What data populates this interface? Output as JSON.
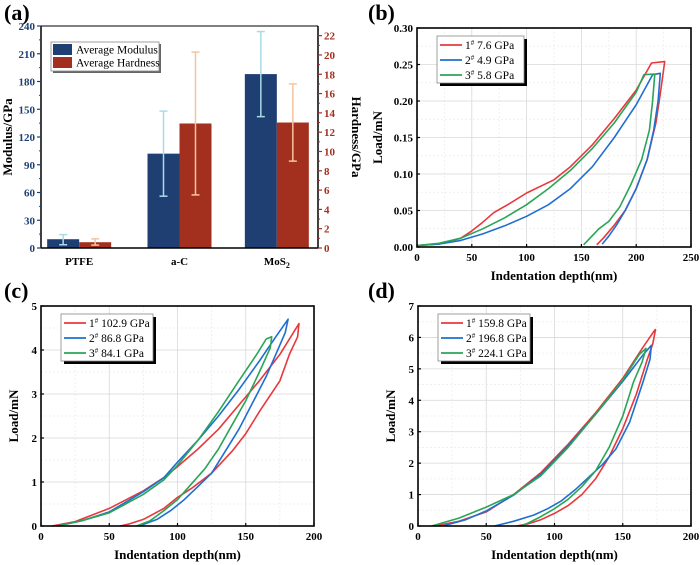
{
  "chart_data": [
    {
      "id": "a",
      "panel_label": "(a)",
      "type": "bar",
      "categories": [
        "PTFE",
        "a-C",
        "MoS2"
      ],
      "category_display": [
        [
          "PTFE",
          ""
        ],
        [
          "a-C",
          ""
        ],
        [
          "MoS",
          "2"
        ]
      ],
      "xlabel": "",
      "ylabel": "Modulus/GPa",
      "y2label": "Hardness/GPa",
      "ylim": [
        0,
        240
      ],
      "y2lim": [
        0,
        23
      ],
      "yticks": [
        0,
        30,
        60,
        90,
        120,
        150,
        180,
        210,
        240
      ],
      "y2ticks": [
        0,
        2,
        4,
        6,
        8,
        10,
        12,
        14,
        16,
        18,
        20,
        22
      ],
      "legend_position": "top-left",
      "series": [
        {
          "name": "Average Modulus",
          "axis": "left",
          "color": "#1f3f72",
          "err_color": "#a8dbe8",
          "values": [
            9.5,
            102,
            188
          ],
          "err_low": [
            3.5,
            56,
            142
          ],
          "err_high": [
            14.5,
            148,
            234
          ]
        },
        {
          "name": "Average Hardness",
          "axis": "right",
          "color": "#a3301f",
          "err_color": "#f6c49d",
          "values": [
            0.6,
            12.9,
            13.0
          ],
          "err_low": [
            0.3,
            5.5,
            9.0
          ],
          "err_high": [
            0.95,
            20.3,
            17.0
          ]
        }
      ],
      "colors": {
        "left_axis": "#1f3f72",
        "right_axis": "#a3301f"
      }
    },
    {
      "id": "b",
      "panel_label": "(b)",
      "type": "line",
      "xlabel": "Indentation depth(nm)",
      "ylabel": "Load/mN",
      "xlim": [
        0,
        250
      ],
      "ylim": [
        0,
        0.3
      ],
      "xticks": [
        0,
        50,
        100,
        150,
        200,
        250
      ],
      "yticks": [
        "0.00",
        "0.05",
        "0.10",
        "0.15",
        "0.20",
        "0.25",
        "0.30"
      ],
      "grid": true,
      "legend_position": "top-left",
      "series": [
        {
          "name": "1#",
          "label_num": "1",
          "value": "7.6 GPa",
          "color": "#e8383d",
          "x": [
            0,
            20,
            40,
            50,
            60,
            70,
            85,
            100,
            125,
            140,
            160,
            180,
            200,
            214,
            226,
            222,
            218,
            210,
            200,
            190,
            180,
            170,
            164
          ],
          "y": [
            0.002,
            0.004,
            0.012,
            0.022,
            0.034,
            0.047,
            0.06,
            0.074,
            0.092,
            0.11,
            0.14,
            0.176,
            0.215,
            0.252,
            0.254,
            0.21,
            0.17,
            0.12,
            0.08,
            0.05,
            0.03,
            0.012,
            0.003
          ]
        },
        {
          "name": "2#",
          "label_num": "2",
          "value": "4.9 GPa",
          "color": "#1f6fd1",
          "x": [
            0,
            20,
            40,
            60,
            80,
            100,
            120,
            140,
            160,
            180,
            200,
            215,
            222,
            220,
            216,
            210,
            200,
            190,
            182,
            175,
            169
          ],
          "y": [
            0.002,
            0.004,
            0.009,
            0.018,
            0.029,
            0.042,
            0.058,
            0.08,
            0.11,
            0.15,
            0.195,
            0.236,
            0.238,
            0.2,
            0.16,
            0.12,
            0.08,
            0.05,
            0.03,
            0.015,
            0.004
          ]
        },
        {
          "name": "3#",
          "label_num": "3",
          "value": "5.8 GPa",
          "color": "#2aa556",
          "x": [
            0,
            20,
            40,
            60,
            80,
            100,
            120,
            140,
            160,
            180,
            200,
            207,
            217,
            215,
            212,
            205,
            195,
            185,
            175,
            166,
            152
          ],
          "y": [
            0.002,
            0.005,
            0.012,
            0.025,
            0.04,
            0.058,
            0.08,
            0.105,
            0.135,
            0.17,
            0.212,
            0.236,
            0.237,
            0.2,
            0.16,
            0.12,
            0.085,
            0.055,
            0.035,
            0.025,
            0.003
          ]
        }
      ]
    },
    {
      "id": "c",
      "panel_label": "(c)",
      "type": "line",
      "xlabel": "Indentation depth(nm)",
      "ylabel": "Load/mN",
      "xlim": [
        0,
        200
      ],
      "ylim": [
        0,
        5
      ],
      "xticks": [
        0,
        50,
        100,
        150,
        200
      ],
      "yticks": [
        "0",
        "1",
        "2",
        "3",
        "4",
        "5"
      ],
      "grid": true,
      "legend_position": "top-left",
      "series": [
        {
          "name": "1#",
          "label_num": "1",
          "value": "102.9 GPa",
          "color": "#e8383d",
          "x": [
            8,
            25,
            50,
            75,
            90,
            100,
            115,
            130,
            145,
            160,
            175,
            185,
            189,
            188,
            182,
            175,
            160,
            150,
            140,
            125,
            110,
            100,
            90,
            75,
            65,
            58
          ],
          "y": [
            0,
            0.1,
            0.4,
            0.8,
            1.1,
            1.35,
            1.75,
            2.2,
            2.75,
            3.3,
            3.9,
            4.4,
            4.6,
            4.3,
            3.9,
            3.3,
            2.6,
            2.1,
            1.7,
            1.2,
            0.85,
            0.65,
            0.4,
            0.15,
            0.05,
            0
          ]
        },
        {
          "name": "2#",
          "label_num": "2",
          "value": "86.8 GPa",
          "color": "#1f6fd1",
          "x": [
            12,
            30,
            50,
            75,
            90,
            100,
            115,
            130,
            145,
            160,
            172,
            181,
            179,
            172,
            165,
            155,
            145,
            135,
            125,
            115,
            105,
            95,
            85,
            72
          ],
          "y": [
            0,
            0.12,
            0.32,
            0.78,
            1.1,
            1.45,
            1.95,
            2.5,
            3.1,
            3.75,
            4.3,
            4.7,
            4.4,
            3.9,
            3.4,
            2.8,
            2.2,
            1.7,
            1.2,
            0.9,
            0.6,
            0.35,
            0.15,
            0
          ]
        },
        {
          "name": "3#",
          "label_num": "3",
          "value": "84.1 GPa",
          "color": "#2aa556",
          "x": [
            12,
            30,
            50,
            75,
            90,
            100,
            115,
            130,
            145,
            158,
            165,
            169,
            168,
            160,
            150,
            140,
            130,
            120,
            110,
            100,
            90,
            80,
            70
          ],
          "y": [
            0,
            0.12,
            0.3,
            0.72,
            1.05,
            1.38,
            1.95,
            2.6,
            3.3,
            3.9,
            4.25,
            4.3,
            4.05,
            3.5,
            2.85,
            2.3,
            1.75,
            1.3,
            0.95,
            0.6,
            0.35,
            0.12,
            0
          ]
        }
      ]
    },
    {
      "id": "d",
      "panel_label": "(d)",
      "type": "line",
      "xlabel": "Indentation depth(nm)",
      "ylabel": "Load/mN",
      "xlim": [
        0,
        200
      ],
      "ylim": [
        0,
        7
      ],
      "xticks": [
        0,
        50,
        100,
        150,
        200
      ],
      "yticks": [
        "0",
        "1",
        "2",
        "3",
        "4",
        "5",
        "6",
        "7"
      ],
      "grid": true,
      "legend_position": "top-left",
      "series": [
        {
          "name": "1#",
          "label_num": "1",
          "value": "159.8 GPa",
          "color": "#e8383d",
          "x": [
            12,
            30,
            50,
            70,
            90,
            110,
            130,
            150,
            165,
            173,
            174,
            172,
            168,
            160,
            150,
            140,
            130,
            120,
            110,
            100,
            90,
            80,
            72
          ],
          "y": [
            0,
            0.15,
            0.45,
            1.0,
            1.7,
            2.6,
            3.6,
            4.7,
            5.7,
            6.2,
            6.25,
            5.8,
            5.3,
            4.2,
            3.1,
            2.2,
            1.5,
            1.0,
            0.65,
            0.4,
            0.2,
            0.06,
            0
          ]
        },
        {
          "name": "2#",
          "label_num": "2",
          "value": "196.8 GPa",
          "color": "#1f6fd1",
          "x": [
            18,
            35,
            50,
            70,
            90,
            110,
            130,
            150,
            165,
            171,
            170,
            165,
            155,
            145,
            135,
            125,
            115,
            105,
            95,
            85,
            70,
            56
          ],
          "y": [
            0,
            0.2,
            0.48,
            0.98,
            1.65,
            2.55,
            3.55,
            4.6,
            5.45,
            5.75,
            5.3,
            4.6,
            3.3,
            2.45,
            1.95,
            1.55,
            1.15,
            0.8,
            0.55,
            0.35,
            0.15,
            0
          ]
        },
        {
          "name": "3#",
          "label_num": "3",
          "value": "224.1 GPa",
          "color": "#2aa556",
          "x": [
            10,
            30,
            50,
            70,
            90,
            110,
            130,
            150,
            162,
            167,
            164,
            158,
            150,
            140,
            130,
            120,
            110,
            100,
            90,
            80,
            75
          ],
          "y": [
            0,
            0.25,
            0.6,
            1.0,
            1.6,
            2.5,
            3.55,
            4.65,
            5.45,
            5.65,
            5.2,
            4.6,
            3.5,
            2.5,
            1.75,
            1.25,
            0.85,
            0.55,
            0.3,
            0.08,
            0
          ]
        }
      ]
    }
  ]
}
